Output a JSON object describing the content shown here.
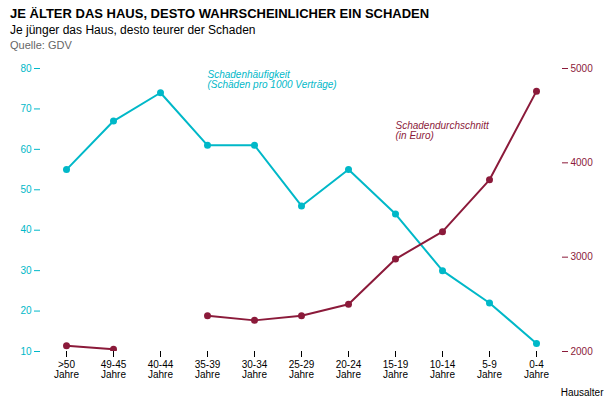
{
  "chart_data": {
    "type": "line",
    "title": "JE ÄLTER DAS HAUS, DESTO WAHRSCHEINLICHER EIN SCHADEN",
    "subtitle": "Je jünger das Haus, desto teurer der Schaden",
    "source": "Quelle: GDV",
    "x_label": "Hausalter",
    "categories": [
      ">50\nJahre",
      "49-45\nJahre",
      "40-44\nJahre",
      "35-39\nJahre",
      "30-34\nJahre",
      "25-29\nJahre",
      "20-24\nJahre",
      "15-19\nJahre",
      "10-14\nJahre",
      "5-9\nJahre",
      "0-4\nJahre"
    ],
    "marker": "circle",
    "series": [
      {
        "name": "Schadenhäufigkeit\n(Schäden pro 1000 Verträge)",
        "color": "#00b8c8",
        "values": [
          55,
          67,
          74,
          61,
          61,
          46,
          55,
          44,
          30,
          22,
          12
        ]
      },
      {
        "name": "Schadendurchschnitt\n(in Euro)",
        "color": "#8b1a3a",
        "axis": "y2",
        "values": [
          2060,
          2025,
          null,
          2380,
          2330,
          2380,
          2500,
          2980,
          3270,
          3820,
          4760
        ]
      }
    ],
    "ylim": [
      10,
      80
    ],
    "yticks": [
      10,
      20,
      30,
      40,
      50,
      60,
      70,
      80
    ],
    "y2lim": [
      2000,
      5000
    ],
    "y2ticks": [
      2000,
      3000,
      4000,
      5000
    ]
  }
}
